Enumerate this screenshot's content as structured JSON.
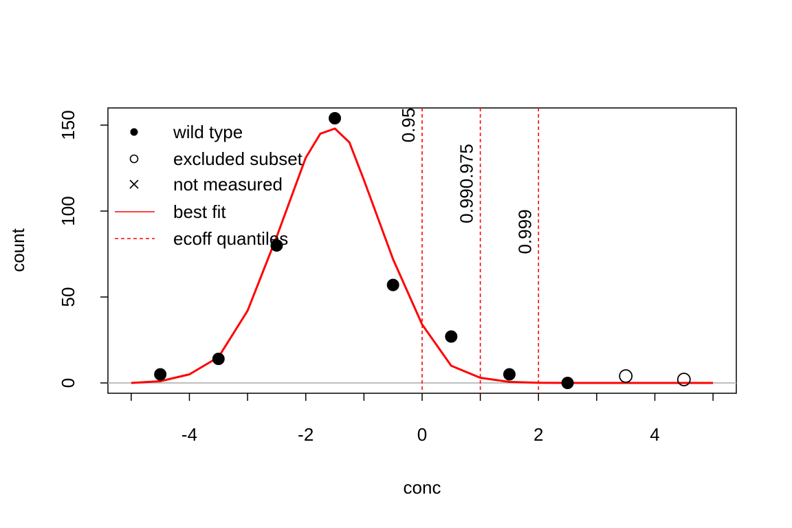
{
  "chart_data": {
    "type": "scatter",
    "xlabel": "conc",
    "ylabel": "count",
    "xlim": [
      -5.4,
      5.4
    ],
    "ylim": [
      -6,
      160
    ],
    "x_ticks": [
      -4,
      -2,
      0,
      2,
      4
    ],
    "x_tick_labels": [
      "-4",
      "-2",
      "0",
      "2",
      "4"
    ],
    "x_minor_ticks": [
      -5,
      -3,
      -1,
      1,
      3,
      5
    ],
    "y_ticks": [
      0,
      50,
      100,
      150
    ],
    "y_tick_labels": [
      "0",
      "50",
      "100",
      "150"
    ],
    "baseline_y": 0,
    "series": [
      {
        "name": "wild type",
        "marker": "filled-circle",
        "color": "#000000",
        "x": [
          -4.5,
          -3.5,
          -2.5,
          -1.5,
          -0.5,
          0.5,
          1.5,
          2.5
        ],
        "y": [
          5,
          14,
          80,
          154,
          57,
          27,
          5,
          0
        ]
      },
      {
        "name": "excluded subset",
        "marker": "open-circle",
        "color": "#000000",
        "x": [
          3.5,
          4.5
        ],
        "y": [
          4,
          2
        ]
      },
      {
        "name": "not measured",
        "marker": "cross",
        "color": "#000000",
        "x": [],
        "y": []
      }
    ],
    "fit": {
      "name": "best fit",
      "color": "#ff0000",
      "x": [
        -5,
        -4.5,
        -4,
        -3.5,
        -3,
        -2.5,
        -2,
        -1.75,
        -1.5,
        -1.25,
        -1,
        -0.5,
        0,
        0.5,
        1,
        1.5,
        2,
        2.5,
        3,
        4,
        5
      ],
      "y": [
        0,
        1,
        5,
        15,
        42,
        85,
        131,
        145,
        148,
        140,
        118,
        72,
        34,
        10,
        3,
        0.6,
        0.1,
        0,
        0,
        0,
        0
      ]
    },
    "ecoff_quantiles": {
      "name": "ecoff quantiles",
      "color": "#ff0000",
      "lines": [
        {
          "x": 0,
          "labels": [
            "0.95"
          ],
          "label_y": 150
        },
        {
          "x": 1,
          "labels": [
            "0.99",
            "0.975"
          ],
          "label_y": 116
        },
        {
          "x": 2,
          "labels": [
            "0.999"
          ],
          "label_y": 88
        }
      ]
    },
    "legend": {
      "position": "top-left",
      "entries": [
        "wild type",
        "excluded subset",
        "not measured",
        "best fit",
        "ecoff quantiles"
      ]
    },
    "grid": false
  }
}
